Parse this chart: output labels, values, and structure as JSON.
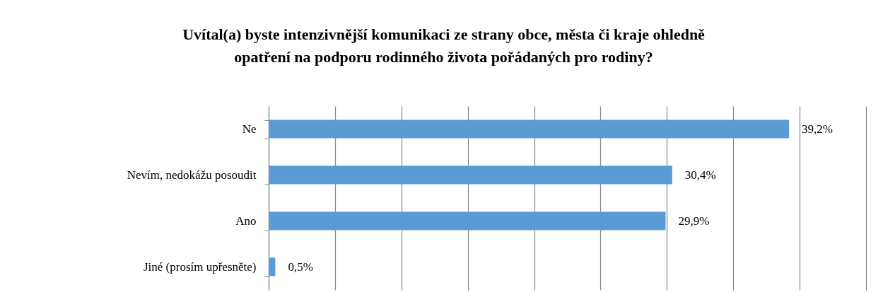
{
  "chart_data": {
    "type": "bar",
    "orientation": "horizontal",
    "title": "Uvítal(a) byste intenzivnější komunikaci ze strany obce, města či kraje ohledně opatření na podporu rodinného života pořádaných pro rodiny?",
    "categories": [
      "Ne",
      "Nevím, nedokážu posoudit",
      "Ano",
      "Jiné (prosím upřesněte)"
    ],
    "values": [
      39.2,
      30.4,
      29.9,
      0.5
    ],
    "value_labels": [
      "39,2%",
      "30,4%",
      "29,9%",
      "0,5%"
    ],
    "color": "#5b9bd5",
    "xlim": [
      0,
      45
    ],
    "xticks": [
      {
        "value": 0,
        "label": null
      },
      {
        "value": 5,
        "label": null
      },
      {
        "value": 10,
        "label": null
      },
      {
        "value": 15,
        "label": null
      },
      {
        "value": 20,
        "label": null
      },
      {
        "value": 25,
        "label": null
      },
      {
        "value": 30,
        "label": null
      },
      {
        "value": 35,
        "label": null
      },
      {
        "value": 40,
        "label": null
      },
      {
        "value": 45,
        "label": null
      }
    ],
    "grid": "x",
    "tick_labels": "y"
  }
}
